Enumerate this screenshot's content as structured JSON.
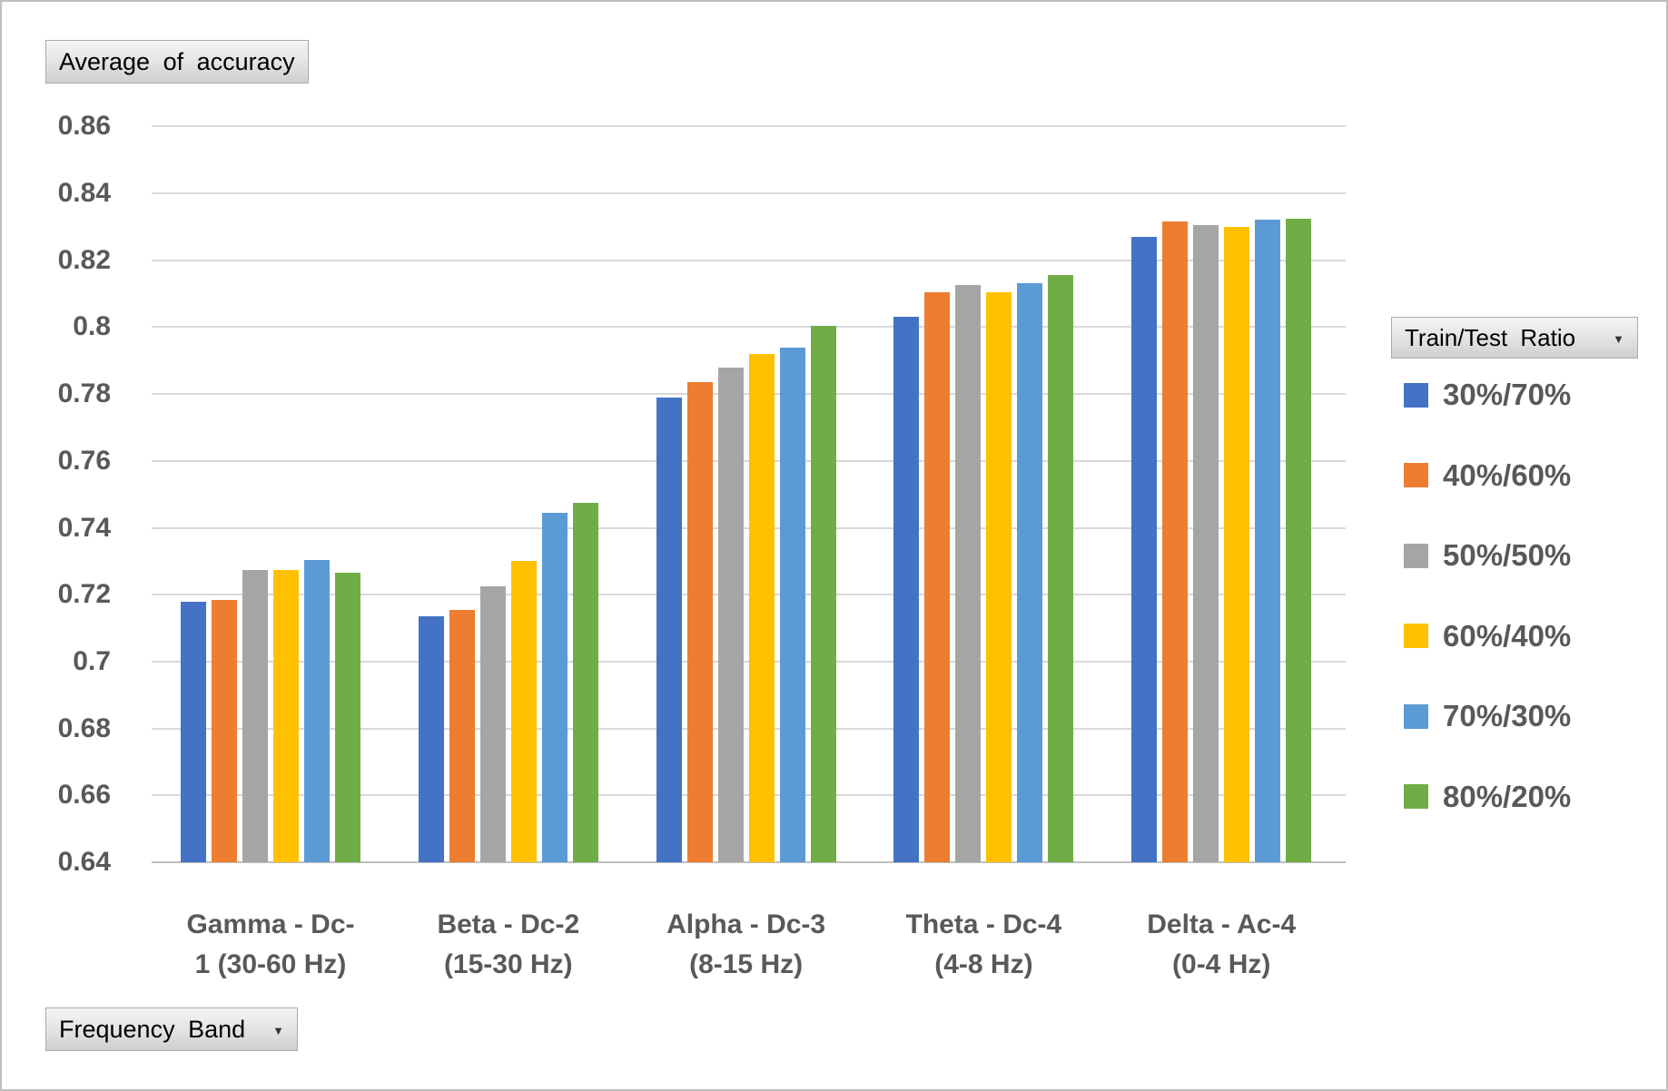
{
  "field_buttons": {
    "values_label": "Average of accuracy",
    "legend_label": "Train/Test Ratio",
    "axis_label": "Frequency Band",
    "dropdown_glyph": "▼"
  },
  "chart_data": {
    "type": "bar",
    "title": "Average of accuracy",
    "xlabel": "Frequency Band",
    "ylabel": "Average of accuracy",
    "legend_title": "Train/Test Ratio",
    "legend_position": "right",
    "grid": true,
    "ylim": [
      0.64,
      0.86
    ],
    "ytick_step": 0.02,
    "ytick_labels": [
      "0.86",
      "0.84",
      "0.82",
      "0.8",
      "0.78",
      "0.76",
      "0.74",
      "0.72",
      "0.7",
      "0.68",
      "0.66",
      "0.64"
    ],
    "categories": [
      "Gamma - Dc-\n1 (30-60 Hz)",
      "Beta - Dc-2\n(15-30 Hz)",
      "Alpha - Dc-3\n(8-15 Hz)",
      "Theta - Dc-4\n(4-8 Hz)",
      "Delta - Ac-4\n(0-4 Hz)"
    ],
    "series": [
      {
        "name": "30%/70%",
        "color": "#4472C4",
        "values": [
          0.718,
          0.7135,
          0.779,
          0.803,
          0.827
        ]
      },
      {
        "name": "40%/60%",
        "color": "#ED7D31",
        "values": [
          0.7185,
          0.7155,
          0.7835,
          0.8105,
          0.8315
        ]
      },
      {
        "name": "50%/50%",
        "color": "#A5A5A5",
        "values": [
          0.7275,
          0.7225,
          0.788,
          0.8125,
          0.8305
        ]
      },
      {
        "name": "60%/40%",
        "color": "#FFC000",
        "values": [
          0.7275,
          0.73,
          0.792,
          0.8105,
          0.83
        ]
      },
      {
        "name": "70%/30%",
        "color": "#5B9BD5",
        "values": [
          0.7305,
          0.7445,
          0.794,
          0.813,
          0.832
        ]
      },
      {
        "name": "80%/20%",
        "color": "#70AD47",
        "values": [
          0.7265,
          0.7475,
          0.8005,
          0.8155,
          0.8325
        ]
      }
    ],
    "colors": {
      "tick_text": "#595959",
      "gridline": "#D9D9D9",
      "axis_line": "#BFBFBF"
    }
  }
}
